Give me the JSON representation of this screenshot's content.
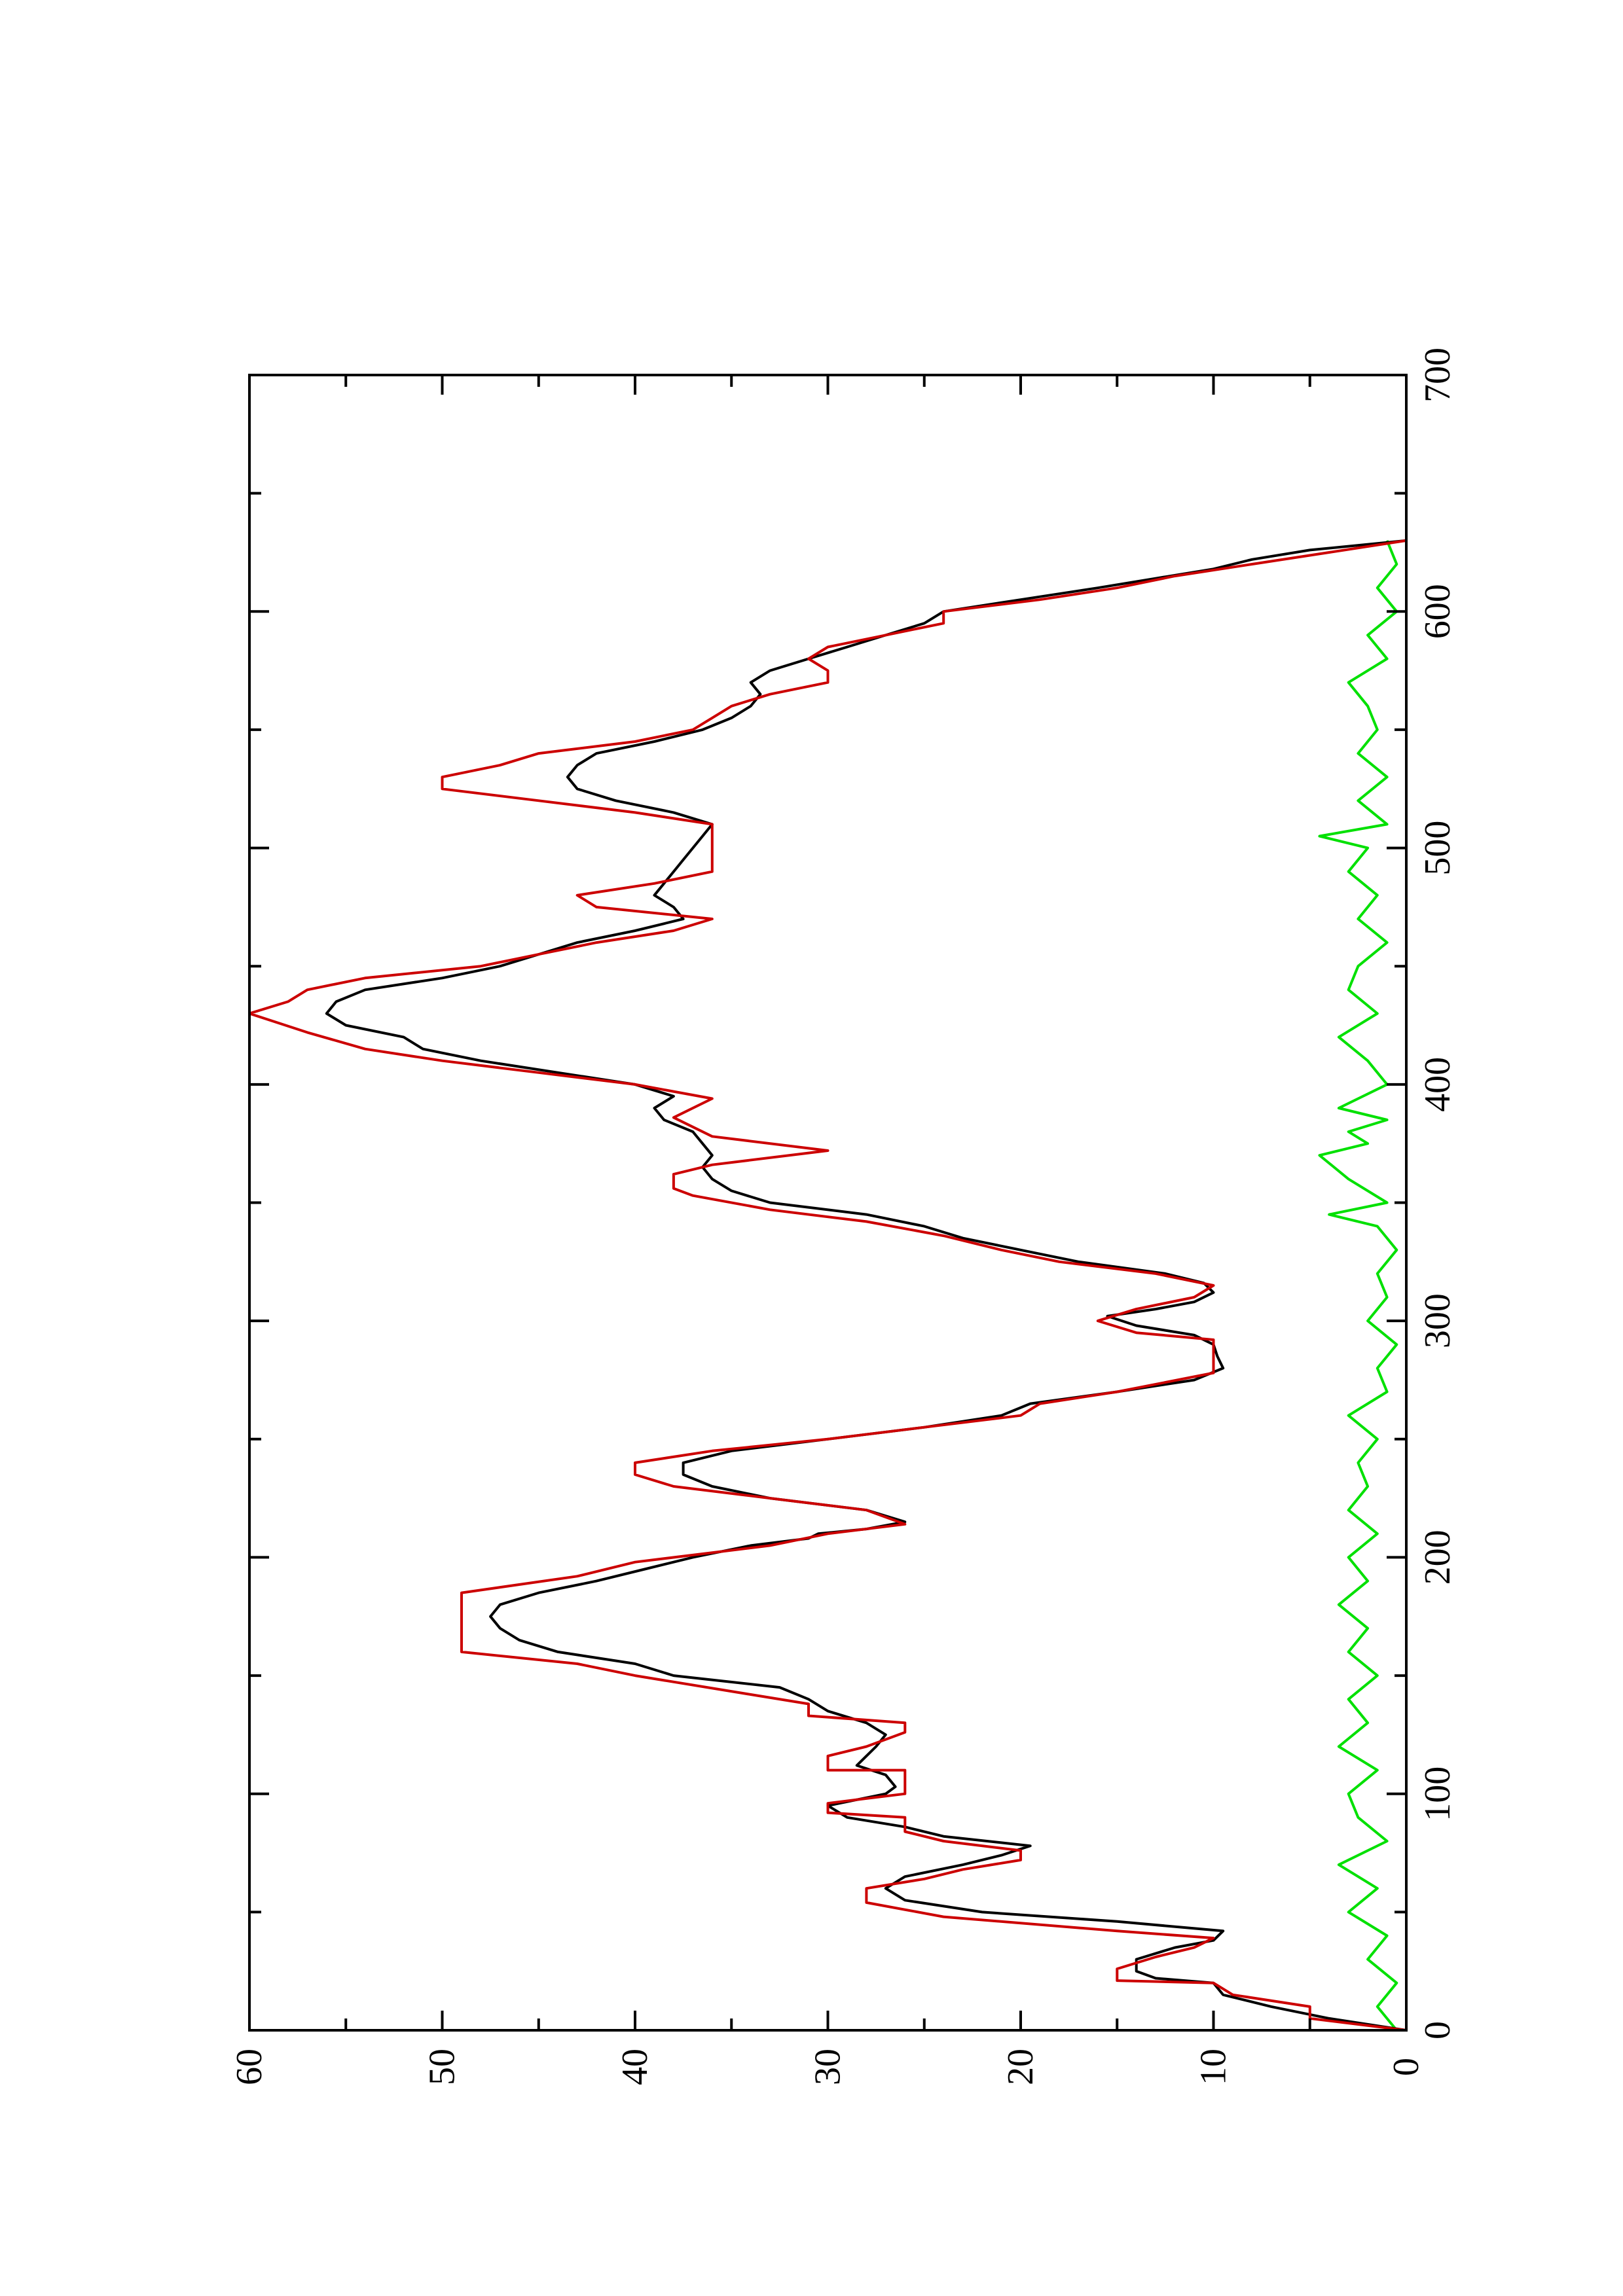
{
  "chart_data": {
    "type": "line",
    "title": "",
    "xlabel": "",
    "ylabel": "",
    "orientation": "rotated-90-ccw",
    "xlim": [
      0,
      700
    ],
    "ylim": [
      0,
      60
    ],
    "x_ticks": [
      "0",
      "100",
      "200",
      "300",
      "400",
      "500",
      "600",
      "700"
    ],
    "y_ticks": [
      "0",
      "10",
      "20",
      "30",
      "40",
      "50",
      "60"
    ],
    "grid": false,
    "legend": "none",
    "series": [
      {
        "color": "#000000",
        "points": [
          [
            0,
            0
          ],
          [
            5,
            4
          ],
          [
            10,
            7
          ],
          [
            15,
            9.5
          ],
          [
            20,
            10
          ],
          [
            22,
            13
          ],
          [
            25,
            14
          ],
          [
            30,
            14
          ],
          [
            35,
            12
          ],
          [
            38,
            10
          ],
          [
            42,
            9.5
          ],
          [
            46,
            15
          ],
          [
            50,
            22
          ],
          [
            55,
            26
          ],
          [
            60,
            27
          ],
          [
            65,
            26
          ],
          [
            70,
            23
          ],
          [
            74,
            21
          ],
          [
            78,
            19.5
          ],
          [
            82,
            24
          ],
          [
            86,
            26
          ],
          [
            90,
            29
          ],
          [
            95,
            30
          ],
          [
            100,
            27
          ],
          [
            103,
            26.5
          ],
          [
            108,
            27
          ],
          [
            112,
            28.5
          ],
          [
            116,
            28
          ],
          [
            120,
            27.5
          ],
          [
            125,
            27
          ],
          [
            130,
            28
          ],
          [
            135,
            30
          ],
          [
            140,
            31
          ],
          [
            145,
            32.5
          ],
          [
            150,
            38
          ],
          [
            155,
            40
          ],
          [
            160,
            44
          ],
          [
            165,
            46
          ],
          [
            170,
            47
          ],
          [
            175,
            47.5
          ],
          [
            180,
            47
          ],
          [
            185,
            45
          ],
          [
            190,
            42
          ],
          [
            195,
            39.5
          ],
          [
            200,
            37
          ],
          [
            205,
            34
          ],
          [
            208,
            31
          ],
          [
            210,
            30.5
          ],
          [
            212,
            28
          ],
          [
            215,
            26
          ],
          [
            220,
            28
          ],
          [
            225,
            33
          ],
          [
            230,
            36
          ],
          [
            235,
            37.5
          ],
          [
            240,
            37.5
          ],
          [
            245,
            35
          ],
          [
            250,
            30
          ],
          [
            255,
            25
          ],
          [
            260,
            21
          ],
          [
            265,
            19.5
          ],
          [
            270,
            15
          ],
          [
            275,
            11
          ],
          [
            280,
            9.5
          ],
          [
            285,
            9.8
          ],
          [
            290,
            10
          ],
          [
            294,
            11
          ],
          [
            298,
            14
          ],
          [
            302,
            15.5
          ],
          [
            305,
            13
          ],
          [
            308,
            11
          ],
          [
            312,
            10
          ],
          [
            316,
            10.5
          ],
          [
            320,
            12.5
          ],
          [
            325,
            17
          ],
          [
            330,
            20
          ],
          [
            335,
            23
          ],
          [
            340,
            25
          ],
          [
            345,
            28
          ],
          [
            350,
            33
          ],
          [
            355,
            35
          ],
          [
            360,
            36
          ],
          [
            365,
            36.5
          ],
          [
            370,
            36
          ],
          [
            375,
            36.5
          ],
          [
            380,
            37
          ],
          [
            385,
            38.5
          ],
          [
            390,
            39
          ],
          [
            395,
            38
          ],
          [
            400,
            40
          ],
          [
            405,
            44
          ],
          [
            410,
            48
          ],
          [
            415,
            51
          ],
          [
            420,
            52
          ],
          [
            425,
            55
          ],
          [
            430,
            56
          ],
          [
            435,
            55.5
          ],
          [
            440,
            54
          ],
          [
            445,
            50
          ],
          [
            450,
            47
          ],
          [
            455,
            45
          ],
          [
            460,
            43
          ],
          [
            465,
            40
          ],
          [
            470,
            37.5
          ],
          [
            475,
            38
          ],
          [
            480,
            39
          ],
          [
            485,
            38.5
          ],
          [
            490,
            38
          ],
          [
            495,
            37.5
          ],
          [
            500,
            37
          ],
          [
            505,
            36.5
          ],
          [
            510,
            36
          ],
          [
            515,
            38
          ],
          [
            520,
            41
          ],
          [
            525,
            43
          ],
          [
            530,
            43.5
          ],
          [
            535,
            43
          ],
          [
            540,
            42
          ],
          [
            545,
            39
          ],
          [
            550,
            36.5
          ],
          [
            555,
            35
          ],
          [
            560,
            34
          ],
          [
            565,
            33.5
          ],
          [
            570,
            34
          ],
          [
            575,
            33
          ],
          [
            580,
            31
          ],
          [
            585,
            29
          ],
          [
            590,
            27
          ],
          [
            595,
            25
          ],
          [
            600,
            24
          ],
          [
            605,
            20
          ],
          [
            610,
            16
          ],
          [
            614,
            13
          ],
          [
            618,
            10
          ],
          [
            622,
            8
          ],
          [
            626,
            5
          ],
          [
            630,
            0
          ]
        ]
      },
      {
        "color": "#cc0000",
        "points": [
          [
            0,
            0
          ],
          [
            5,
            5
          ],
          [
            10,
            5
          ],
          [
            15,
            9
          ],
          [
            20,
            10
          ],
          [
            21,
            15
          ],
          [
            26,
            15
          ],
          [
            31,
            13
          ],
          [
            35,
            11
          ],
          [
            39,
            10
          ],
          [
            42,
            15
          ],
          [
            48,
            24
          ],
          [
            54,
            28
          ],
          [
            60,
            28
          ],
          [
            64,
            25
          ],
          [
            68,
            23
          ],
          [
            72,
            20
          ],
          [
            76,
            20
          ],
          [
            80,
            24
          ],
          [
            84,
            26
          ],
          [
            90,
            26
          ],
          [
            92,
            30
          ],
          [
            96,
            30
          ],
          [
            98,
            28
          ],
          [
            100,
            26
          ],
          [
            110,
            26
          ],
          [
            110,
            30
          ],
          [
            116,
            30
          ],
          [
            120,
            28
          ],
          [
            126,
            26
          ],
          [
            130,
            26
          ],
          [
            133,
            31
          ],
          [
            138,
            31
          ],
          [
            142,
            34
          ],
          [
            150,
            40
          ],
          [
            155,
            43
          ],
          [
            160,
            49
          ],
          [
            170,
            49
          ],
          [
            185,
            49
          ],
          [
            192,
            43
          ],
          [
            198,
            40
          ],
          [
            205,
            33
          ],
          [
            210,
            30
          ],
          [
            214,
            26
          ],
          [
            220,
            28
          ],
          [
            225,
            33
          ],
          [
            230,
            38
          ],
          [
            235,
            40
          ],
          [
            240,
            40
          ],
          [
            245,
            36
          ],
          [
            250,
            30
          ],
          [
            255,
            25
          ],
          [
            260,
            20
          ],
          [
            265,
            19
          ],
          [
            270,
            15
          ],
          [
            278,
            10
          ],
          [
            285,
            10
          ],
          [
            292,
            10
          ],
          [
            295,
            14
          ],
          [
            300,
            16
          ],
          [
            305,
            14
          ],
          [
            310,
            11
          ],
          [
            315,
            10
          ],
          [
            320,
            13
          ],
          [
            325,
            18
          ],
          [
            330,
            21
          ],
          [
            336,
            24
          ],
          [
            342,
            28
          ],
          [
            347,
            33
          ],
          [
            353,
            37
          ],
          [
            356,
            38
          ],
          [
            362,
            38
          ],
          [
            366,
            36
          ],
          [
            372,
            30
          ],
          [
            378,
            36
          ],
          [
            386,
            38
          ],
          [
            394,
            36
          ],
          [
            400,
            40
          ],
          [
            405,
            45
          ],
          [
            410,
            50
          ],
          [
            415,
            54
          ],
          [
            422,
            57
          ],
          [
            430,
            60
          ],
          [
            435,
            58
          ],
          [
            440,
            57
          ],
          [
            445,
            54
          ],
          [
            450,
            48
          ],
          [
            455,
            45
          ],
          [
            460,
            42
          ],
          [
            465,
            38
          ],
          [
            470,
            36
          ],
          [
            475,
            42
          ],
          [
            480,
            43
          ],
          [
            485,
            39
          ],
          [
            490,
            36
          ],
          [
            500,
            36
          ],
          [
            510,
            36
          ],
          [
            515,
            40
          ],
          [
            520,
            45
          ],
          [
            525,
            50
          ],
          [
            530,
            50
          ],
          [
            535,
            47
          ],
          [
            540,
            45
          ],
          [
            545,
            40
          ],
          [
            550,
            37
          ],
          [
            555,
            36
          ],
          [
            560,
            35
          ],
          [
            565,
            33
          ],
          [
            570,
            30
          ],
          [
            575,
            30
          ],
          [
            580,
            31
          ],
          [
            585,
            30
          ],
          [
            590,
            27
          ],
          [
            595,
            24
          ],
          [
            600,
            24
          ],
          [
            605,
            19
          ],
          [
            610,
            15
          ],
          [
            615,
            12
          ],
          [
            620,
            8
          ],
          [
            625,
            4
          ],
          [
            630,
            0
          ]
        ]
      },
      {
        "color": "#00e000",
        "points": [
          [
            0,
            0.5
          ],
          [
            10,
            1.5
          ],
          [
            20,
            0.5
          ],
          [
            30,
            2
          ],
          [
            40,
            1
          ],
          [
            50,
            3
          ],
          [
            60,
            1.5
          ],
          [
            70,
            3.5
          ],
          [
            80,
            1
          ],
          [
            90,
            2.5
          ],
          [
            100,
            3
          ],
          [
            110,
            1.5
          ],
          [
            120,
            3.5
          ],
          [
            130,
            2
          ],
          [
            140,
            3
          ],
          [
            150,
            1.5
          ],
          [
            160,
            3
          ],
          [
            170,
            2
          ],
          [
            180,
            3.5
          ],
          [
            190,
            2
          ],
          [
            200,
            3
          ],
          [
            210,
            1.5
          ],
          [
            220,
            3
          ],
          [
            230,
            2
          ],
          [
            240,
            2.5
          ],
          [
            250,
            1.5
          ],
          [
            260,
            3
          ],
          [
            270,
            1
          ],
          [
            280,
            1.5
          ],
          [
            290,
            0.5
          ],
          [
            300,
            2
          ],
          [
            310,
            1
          ],
          [
            320,
            1.5
          ],
          [
            330,
            0.5
          ],
          [
            340,
            1.5
          ],
          [
            345,
            4
          ],
          [
            350,
            1
          ],
          [
            360,
            3
          ],
          [
            370,
            4.5
          ],
          [
            375,
            2
          ],
          [
            380,
            3
          ],
          [
            385,
            1
          ],
          [
            390,
            3.5
          ],
          [
            400,
            1
          ],
          [
            410,
            2
          ],
          [
            420,
            3.5
          ],
          [
            430,
            1.5
          ],
          [
            440,
            3
          ],
          [
            450,
            2.5
          ],
          [
            460,
            1
          ],
          [
            470,
            2.5
          ],
          [
            480,
            1.5
          ],
          [
            490,
            3
          ],
          [
            500,
            2
          ],
          [
            505,
            4.5
          ],
          [
            510,
            1
          ],
          [
            520,
            2.5
          ],
          [
            530,
            1
          ],
          [
            540,
            2.5
          ],
          [
            550,
            1.5
          ],
          [
            560,
            2
          ],
          [
            570,
            3
          ],
          [
            580,
            1
          ],
          [
            590,
            2
          ],
          [
            600,
            0.5
          ],
          [
            610,
            1.5
          ],
          [
            620,
            0.5
          ],
          [
            630,
            1
          ]
        ]
      }
    ]
  }
}
